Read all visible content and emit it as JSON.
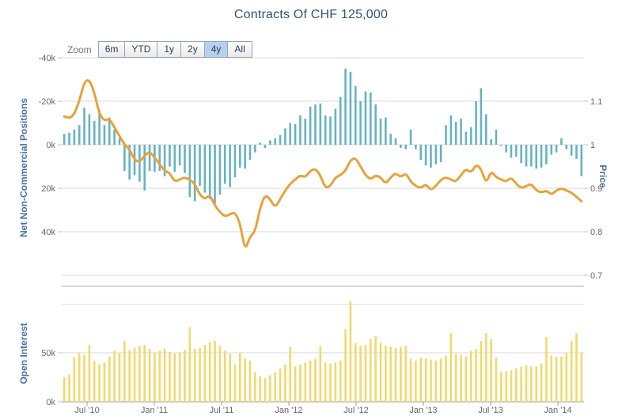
{
  "title": "Contracts Of CHF 125,000",
  "range_selector": {
    "label": "Zoom",
    "buttons": [
      "6m",
      "YTD",
      "1y",
      "2y",
      "4y",
      "All"
    ],
    "selected": "4y"
  },
  "axes": {
    "left": {
      "title": "Net Non-Commercial Positions",
      "tick_labels": [
        "-40k",
        "-20k",
        "0k",
        "20k",
        "40k"
      ],
      "tick_values": [
        -40,
        -20,
        0,
        20,
        40
      ],
      "reversed": true
    },
    "right": {
      "title": "Price",
      "tick_labels": [
        "1.1",
        "1",
        "0.9",
        "0.8",
        "0.7"
      ],
      "tick_values": [
        1.1,
        1.0,
        0.9,
        0.8,
        0.7
      ]
    },
    "open_interest": {
      "title": "Open Interest",
      "tick_labels": [
        "50k",
        "0k"
      ],
      "tick_values": [
        50,
        0
      ]
    }
  },
  "colors": {
    "positions_bar": "#66b3c1",
    "price_line": "#e9a23b",
    "open_interest_bar": "#f0d96e",
    "axis_title": "#4572a7",
    "title_text": "#2e5472",
    "tick_label": "#666666",
    "grid_line": "#d9d9d9",
    "pane_axis_line": "#b0b0b0",
    "selected_button_bg": "#b7d0ee"
  },
  "chart_data": {
    "type": "combo",
    "x_start": "2010-04",
    "x_end": "2014-03",
    "interval": "biweekly (sampled from weekly CFTC data shown)",
    "x_ticks": [
      "Jul '10",
      "Jan '11",
      "Jul '11",
      "Jan '12",
      "Jul '12",
      "Jan '13",
      "Jul '13",
      "Jan '14"
    ],
    "series": [
      {
        "id": "net",
        "name": "Net Non-Commercial Positions",
        "type": "bar",
        "pane": "top",
        "axis": "left",
        "unit": "thousand contracts",
        "axis_reversed": true,
        "ylim": [
          -40,
          60
        ],
        "values": [
          -5,
          -5.5,
          -7,
          -9,
          -17,
          -14,
          -11,
          -16,
          -9,
          -12.5,
          -7,
          -3,
          12,
          16,
          14,
          17,
          21,
          12,
          12.5,
          12,
          14.5,
          10,
          12.5,
          9.5,
          13,
          24,
          26,
          19,
          22,
          25,
          27,
          23,
          18,
          19.5,
          15,
          10.5,
          11,
          7,
          3.5,
          -1,
          1.5,
          -2,
          -3,
          -4.5,
          -7.5,
          -10,
          -9.5,
          -13.5,
          -12,
          -17.5,
          -18.5,
          -19,
          -13.5,
          -13,
          -16.5,
          -22,
          -35,
          -33.5,
          -27,
          -20,
          -24.5,
          -24,
          -18.5,
          -12,
          -12.5,
          -5,
          -3,
          1.5,
          2,
          -7,
          2,
          7,
          9.5,
          10.5,
          9,
          8,
          -9,
          -13.5,
          -10.5,
          -12,
          -6,
          -8,
          -20,
          -26,
          -14,
          -2.5,
          -7,
          0.5,
          3.5,
          6,
          5.5,
          8.5,
          10,
          10,
          11,
          10.5,
          9,
          4.5,
          3.5,
          -3,
          2,
          5,
          6.5,
          14.5
        ]
      },
      {
        "id": "price",
        "name": "Price",
        "type": "line",
        "pane": "top",
        "axis": "right",
        "unit": "USD per CHF",
        "ylim": [
          0.7,
          1.2
        ],
        "values": [
          1.065,
          1.06,
          1.07,
          1.1,
          1.145,
          1.15,
          1.12,
          1.07,
          1.055,
          1.06,
          1.04,
          1.02,
          1.0,
          0.99,
          0.965,
          0.96,
          0.975,
          0.985,
          0.97,
          0.955,
          0.94,
          0.935,
          0.915,
          0.92,
          0.925,
          0.92,
          0.91,
          0.885,
          0.875,
          0.885,
          0.86,
          0.845,
          0.835,
          0.84,
          0.845,
          0.82,
          0.755,
          0.79,
          0.8,
          0.855,
          0.885,
          0.875,
          0.855,
          0.875,
          0.895,
          0.91,
          0.92,
          0.93,
          0.925,
          0.94,
          0.945,
          0.93,
          0.9,
          0.905,
          0.925,
          0.93,
          0.94,
          0.965,
          0.97,
          0.95,
          0.93,
          0.92,
          0.93,
          0.925,
          0.91,
          0.925,
          0.935,
          0.925,
          0.935,
          0.915,
          0.905,
          0.9,
          0.91,
          0.895,
          0.905,
          0.92,
          0.925,
          0.92,
          0.915,
          0.93,
          0.945,
          0.935,
          0.955,
          0.945,
          0.91,
          0.94,
          0.925,
          0.92,
          0.915,
          0.925,
          0.91,
          0.9,
          0.905,
          0.91,
          0.895,
          0.89,
          0.895,
          0.885,
          0.895,
          0.9,
          0.895,
          0.89,
          0.88,
          0.87
        ]
      },
      {
        "id": "oi",
        "name": "Open Interest",
        "type": "bar",
        "pane": "bottom",
        "axis": "open_interest",
        "unit": "thousand contracts",
        "ylim": [
          0,
          110
        ],
        "values": [
          25,
          28,
          45,
          50,
          48,
          58,
          42,
          38,
          40,
          46,
          52,
          50,
          62,
          53,
          55,
          57,
          58,
          54,
          50,
          52,
          54,
          51,
          49,
          50,
          53,
          76,
          54,
          55,
          58,
          61,
          62,
          57,
          52,
          49,
          38,
          50,
          44,
          42,
          30,
          26,
          24,
          27,
          30,
          34,
          38,
          56,
          36,
          38,
          40,
          42,
          44,
          57,
          40,
          39,
          40,
          42,
          74,
          105,
          60,
          57,
          58,
          64,
          67,
          60,
          57,
          56,
          55,
          56,
          57,
          44,
          42,
          45,
          44,
          43,
          42,
          44,
          47,
          70,
          49,
          48,
          46,
          52,
          54,
          62,
          70,
          64,
          45,
          30,
          31,
          32,
          34,
          36,
          37,
          36,
          36,
          39,
          66,
          47,
          46,
          46,
          50,
          62,
          70,
          50
        ]
      }
    ]
  }
}
